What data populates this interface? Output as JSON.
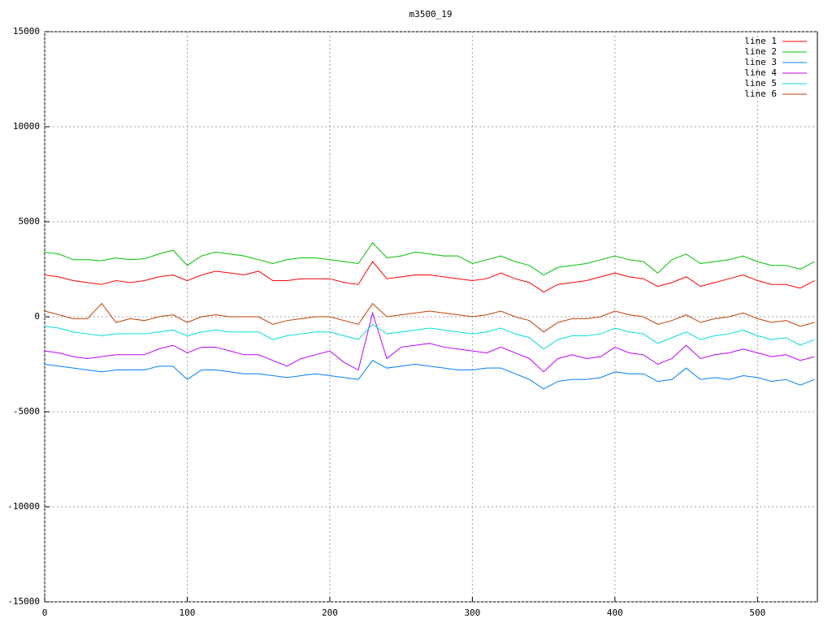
{
  "chart_data": {
    "type": "line",
    "title": "m3500_19",
    "x": [
      0,
      10,
      20,
      30,
      40,
      50,
      60,
      70,
      80,
      90,
      100,
      110,
      120,
      130,
      140,
      150,
      160,
      170,
      180,
      190,
      200,
      210,
      220,
      230,
      240,
      250,
      260,
      270,
      280,
      290,
      300,
      310,
      320,
      330,
      340,
      350,
      360,
      370,
      380,
      390,
      400,
      410,
      420,
      430,
      440,
      450,
      460,
      470,
      480,
      490,
      500,
      510,
      520,
      530,
      540
    ],
    "series": [
      {
        "name": "line 1",
        "color": "#ff0000",
        "values": [
          2200,
          2100,
          1900,
          1800,
          1700,
          1900,
          1800,
          1900,
          2100,
          2200,
          1900,
          2200,
          2400,
          2300,
          2200,
          2400,
          1900,
          1900,
          2000,
          2000,
          2000,
          1800,
          1700,
          2900,
          2000,
          2100,
          2200,
          2200,
          2100,
          2000,
          1900,
          2000,
          2300,
          2000,
          1800,
          1300,
          1700,
          1800,
          1900,
          2100,
          2300,
          2100,
          2000,
          1600,
          1800,
          2100,
          1600,
          1800,
          2000,
          2200,
          1900,
          1700,
          1700,
          1500,
          1900
        ]
      },
      {
        "name": "line 2",
        "color": "#00c000",
        "values": [
          3400,
          3300,
          3000,
          3000,
          2950,
          3100,
          3000,
          3050,
          3300,
          3500,
          2700,
          3200,
          3400,
          3300,
          3200,
          3000,
          2800,
          3000,
          3100,
          3100,
          3000,
          2900,
          2800,
          3900,
          3100,
          3200,
          3400,
          3300,
          3200,
          3200,
          2800,
          3000,
          3200,
          2900,
          2700,
          2200,
          2600,
          2700,
          2800,
          3000,
          3200,
          3000,
          2900,
          2300,
          3000,
          3300,
          2800,
          2900,
          3000,
          3200,
          2900,
          2700,
          2700,
          2500,
          2900
        ]
      },
      {
        "name": "line 3",
        "color": "#0080ff",
        "values": [
          -2500,
          -2600,
          -2700,
          -2800,
          -2900,
          -2800,
          -2800,
          -2800,
          -2600,
          -2600,
          -3300,
          -2800,
          -2800,
          -2900,
          -3000,
          -3000,
          -3100,
          -3200,
          -3100,
          -3000,
          -3100,
          -3200,
          -3300,
          -2300,
          -2700,
          -2600,
          -2500,
          -2600,
          -2700,
          -2800,
          -2800,
          -2700,
          -2700,
          -3000,
          -3300,
          -3800,
          -3400,
          -3300,
          -3300,
          -3200,
          -2900,
          -3000,
          -3000,
          -3400,
          -3300,
          -2700,
          -3300,
          -3200,
          -3300,
          -3100,
          -3200,
          -3400,
          -3300,
          -3600,
          -3300
        ]
      },
      {
        "name": "line 4",
        "color": "#c000ff",
        "values": [
          -1800,
          -1900,
          -2100,
          -2200,
          -2100,
          -2000,
          -2000,
          -2000,
          -1700,
          -1500,
          -1900,
          -1600,
          -1600,
          -1800,
          -2000,
          -2000,
          -2300,
          -2600,
          -2200,
          -2000,
          -1800,
          -2400,
          -2800,
          200,
          -2200,
          -1600,
          -1500,
          -1400,
          -1600,
          -1700,
          -1800,
          -1900,
          -1600,
          -1900,
          -2200,
          -2900,
          -2200,
          -2000,
          -2200,
          -2100,
          -1600,
          -1900,
          -2000,
          -2500,
          -2200,
          -1500,
          -2200,
          -2000,
          -1900,
          -1700,
          -1900,
          -2100,
          -2000,
          -2300,
          -2100
        ]
      },
      {
        "name": "line 5",
        "color": "#00dddd",
        "values": [
          -500,
          -600,
          -800,
          -900,
          -1000,
          -900,
          -900,
          -900,
          -800,
          -700,
          -1000,
          -800,
          -700,
          -800,
          -800,
          -800,
          -1200,
          -1000,
          -900,
          -800,
          -800,
          -1000,
          -1200,
          -400,
          -900,
          -800,
          -700,
          -600,
          -700,
          -800,
          -900,
          -800,
          -600,
          -900,
          -1100,
          -1700,
          -1200,
          -1000,
          -1000,
          -900,
          -600,
          -800,
          -900,
          -1400,
          -1100,
          -800,
          -1200,
          -1000,
          -900,
          -700,
          -1000,
          -1200,
          -1100,
          -1500,
          -1200
        ]
      },
      {
        "name": "line 6",
        "color": "#c04000",
        "values": [
          300,
          100,
          -100,
          -100,
          700,
          -300,
          -100,
          -200,
          0,
          100,
          -300,
          0,
          100,
          0,
          0,
          0,
          -400,
          -200,
          -100,
          0,
          0,
          -200,
          -400,
          700,
          0,
          100,
          200,
          300,
          200,
          100,
          0,
          100,
          300,
          0,
          -200,
          -800,
          -300,
          -100,
          -100,
          0,
          300,
          100,
          0,
          -400,
          -200,
          100,
          -300,
          -100,
          0,
          200,
          -100,
          -300,
          -200,
          -500,
          -300
        ]
      }
    ],
    "xlim": [
      0,
      542
    ],
    "ylim": [
      -15000,
      15000
    ],
    "xticks": [
      0,
      100,
      200,
      300,
      400,
      500
    ],
    "yticks": [
      -15000,
      -10000,
      -5000,
      0,
      5000,
      10000,
      15000
    ],
    "grid": true,
    "legend": "top-right"
  }
}
